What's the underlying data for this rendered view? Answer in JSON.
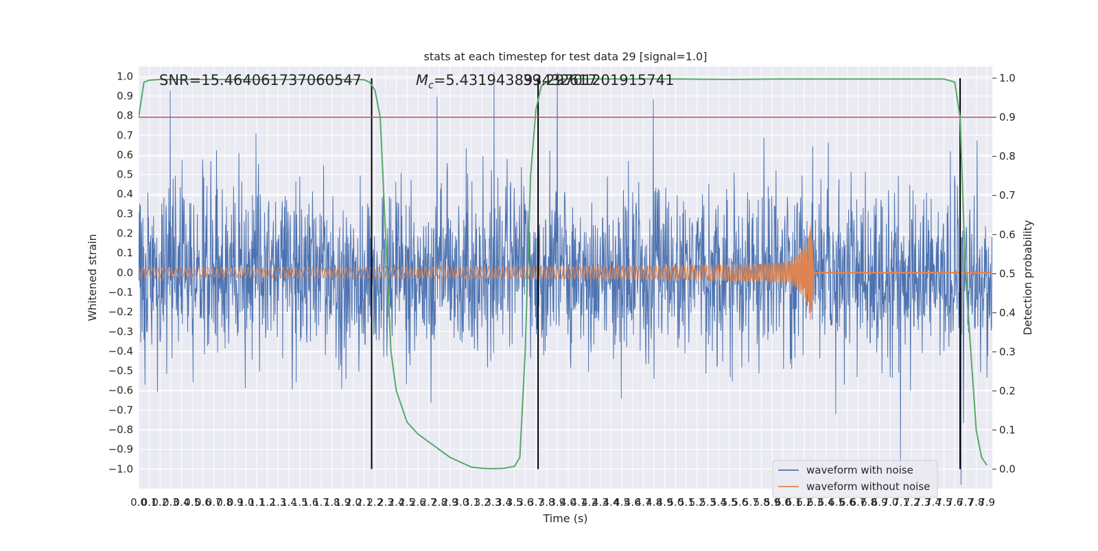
{
  "chart_data": {
    "type": "line",
    "title": "stats at each timestep for test data 29 [signal=1.0]",
    "xlabel": "Time (s)",
    "ylabel_left": "Whitened strain",
    "ylabel_right": "Detection probability",
    "xlim": [
      0.0,
      7.95
    ],
    "ylim_left": [
      -1.1,
      1.05
    ],
    "ylim_right": [
      -0.05,
      1.03
    ],
    "x_ticks": [
      "0.0",
      "0.1",
      "0.2",
      "0.3",
      "0.4",
      "0.5",
      "0.6",
      "0.7",
      "0.8",
      "0.9",
      "1.0",
      "1.1",
      "1.2",
      "1.3",
      "1.4",
      "1.5",
      "1.6",
      "1.7",
      "1.8",
      "1.9",
      "2.0",
      "2.1",
      "2.2",
      "2.3",
      "2.4",
      "2.5",
      "2.6",
      "2.7",
      "2.8",
      "2.9",
      "3.0",
      "3.1",
      "3.2",
      "3.3",
      "3.4",
      "3.5",
      "3.6",
      "3.7",
      "3.8",
      "3.9",
      "4.0",
      "4.1",
      "4.2",
      "4.3",
      "4.4",
      "4.5",
      "4.6",
      "4.7",
      "4.8",
      "4.9",
      "5.0",
      "5.1",
      "5.2",
      "5.3",
      "5.4",
      "5.5",
      "5.6",
      "5.7",
      "5.8",
      "5.9",
      "6.0",
      "6.1",
      "6.2",
      "6.3",
      "6.4",
      "6.5",
      "6.6",
      "6.7",
      "6.8",
      "6.9",
      "7.0",
      "7.1",
      "7.2",
      "7.3",
      "7.4",
      "7.5",
      "7.6",
      "7.7",
      "7.8",
      "7.9"
    ],
    "y_ticks_left": [
      "−1.0",
      "−0.9",
      "−0.8",
      "−0.7",
      "−0.6",
      "−0.5",
      "−0.4",
      "−0.3",
      "−0.2",
      "−0.1",
      "0.0",
      "0.1",
      "0.2",
      "0.3",
      "0.4",
      "0.5",
      "0.6",
      "0.7",
      "0.8",
      "0.9",
      "1.0"
    ],
    "y_ticks_right": [
      "0.0",
      "0.1",
      "0.2",
      "0.3",
      "0.4",
      "0.5",
      "0.6",
      "0.7",
      "0.8",
      "0.9",
      "1.0"
    ],
    "annotations": {
      "snr": "SNR=15.464061737060547",
      "mc_prefix": "M",
      "mc_sub": "c",
      "mc_value": "=5.431943893432617",
      "mc_overlap": "39.29701201915741"
    },
    "threshold": {
      "value": 0.9,
      "axis": "right",
      "color": "#c44e52"
    },
    "vertical_lines": [
      2.17,
      3.72,
      7.65
    ],
    "series": [
      {
        "name": "waveform with noise",
        "color": "#4c72b0",
        "axis": "left",
        "kind": "noise",
        "std": 0.22,
        "duration": 7.95
      },
      {
        "name": "waveform without noise",
        "color": "#dd8452",
        "axis": "left",
        "kind": "chirp",
        "merger_time": 6.27,
        "amp_start": 0.025,
        "amp_peak": 0.35
      },
      {
        "name": "Detection probability",
        "color": "#55a868",
        "axis": "right",
        "x": [
          0.0,
          0.05,
          0.1,
          0.2,
          0.4,
          0.8,
          1.2,
          1.6,
          2.0,
          2.1,
          2.15,
          2.2,
          2.25,
          2.3,
          2.35,
          2.4,
          2.45,
          2.5,
          2.6,
          2.7,
          2.9,
          3.1,
          3.2,
          3.3,
          3.4,
          3.5,
          3.55,
          3.6,
          3.65,
          3.7,
          3.75,
          3.8,
          3.85,
          3.9,
          4.0,
          5.0,
          5.5,
          6.0,
          7.0,
          7.5,
          7.6,
          7.65,
          7.7,
          7.75,
          7.8,
          7.85,
          7.9
        ],
        "y": [
          0.9,
          0.99,
          0.995,
          0.997,
          0.997,
          0.997,
          0.997,
          0.997,
          0.997,
          0.996,
          0.99,
          0.97,
          0.9,
          0.6,
          0.3,
          0.2,
          0.16,
          0.12,
          0.09,
          0.07,
          0.03,
          0.005,
          0.002,
          0.001,
          0.002,
          0.007,
          0.03,
          0.3,
          0.75,
          0.92,
          0.98,
          0.99,
          0.995,
          0.997,
          0.998,
          0.998,
          0.997,
          0.998,
          0.998,
          0.998,
          0.99,
          0.9,
          0.5,
          0.3,
          0.1,
          0.03,
          0.01
        ]
      }
    ],
    "legend": {
      "position": "lower-right",
      "entries": [
        "waveform with noise",
        "waveform without noise"
      ]
    }
  }
}
